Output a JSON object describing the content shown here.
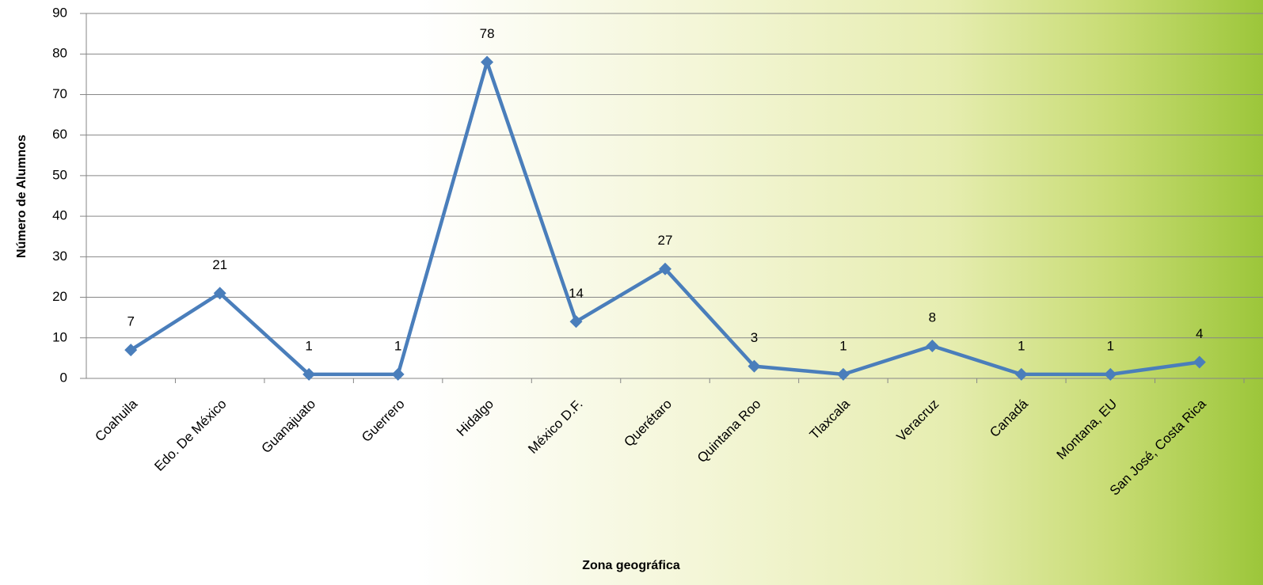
{
  "chart_data": {
    "type": "line",
    "x_label": "Zona geográfica",
    "y_label": "Número de Alumnos",
    "categories": [
      "Coahuila",
      "Edo. De México",
      "Guanajuato",
      "Guerrero",
      "Hidalgo",
      "México D.F.",
      "Querétaro",
      "Quintana Roo",
      "Tlaxcala",
      "Veracruz",
      "Canadá",
      "Montana, EU",
      "San José, Costa Rica"
    ],
    "values": [
      7,
      21,
      1,
      1,
      78,
      14,
      27,
      3,
      1,
      8,
      1,
      1,
      4
    ],
    "color": "#4a7ebb",
    "ylim": [
      0,
      90
    ],
    "yticks": [
      0,
      10,
      20,
      30,
      40,
      50,
      60,
      70,
      80,
      90
    ],
    "grid": true,
    "data_labels": true
  }
}
